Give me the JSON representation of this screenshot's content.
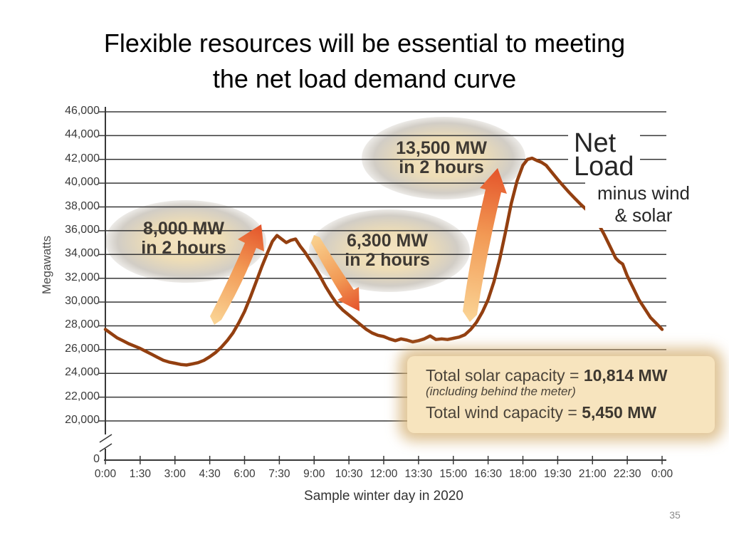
{
  "slide": {
    "title_line1": "Flexible resources will be essential to meeting",
    "title_line2": "the net load demand curve",
    "page_number": "35"
  },
  "chart_data": {
    "type": "line",
    "title": "",
    "xlabel": "Sample winter day in 2020",
    "ylabel": "Megawatts",
    "x_tick_labels": [
      "0:00",
      "1:30",
      "3:00",
      "4:30",
      "6:00",
      "7:30",
      "9:00",
      "10:30",
      "12:00",
      "13:30",
      "15:00",
      "16:30",
      "18:00",
      "19:30",
      "21:00",
      "22:30",
      "0:00"
    ],
    "y_ticks": [
      {
        "label": "46,000",
        "value": 46000
      },
      {
        "label": "44,000",
        "value": 44000
      },
      {
        "label": "42,000",
        "value": 42000
      },
      {
        "label": "40,000",
        "value": 40000
      },
      {
        "label": "38,000",
        "value": 38000
      },
      {
        "label": "36,000",
        "value": 36000
      },
      {
        "label": "34,000",
        "value": 34000
      },
      {
        "label": "32,000",
        "value": 32000
      },
      {
        "label": "30,000",
        "value": 30000
      },
      {
        "label": "28,000",
        "value": 28000
      },
      {
        "label": "26,000",
        "value": 26000
      },
      {
        "label": "24,000",
        "value": 24000
      },
      {
        "label": "22,000",
        "value": 22000
      },
      {
        "label": "20,000",
        "value": 20000
      }
    ],
    "y_zero_tick": {
      "label": "0",
      "value": 0
    },
    "axis_break": true,
    "ylim": [
      20000,
      46000
    ],
    "grid": true,
    "legend_position": "none",
    "series": [
      {
        "name": "Net Load minus wind & solar",
        "color": "#933f10",
        "x_unit": "hour of day",
        "points": [
          [
            0,
            27700
          ],
          [
            0.25,
            27350
          ],
          [
            0.5,
            27000
          ],
          [
            0.75,
            26750
          ],
          [
            1,
            26500
          ],
          [
            1.25,
            26300
          ],
          [
            1.5,
            26100
          ],
          [
            1.75,
            25850
          ],
          [
            2,
            25600
          ],
          [
            2.25,
            25350
          ],
          [
            2.5,
            25100
          ],
          [
            2.75,
            24950
          ],
          [
            3,
            24850
          ],
          [
            3.25,
            24750
          ],
          [
            3.5,
            24700
          ],
          [
            3.75,
            24800
          ],
          [
            4,
            24900
          ],
          [
            4.25,
            25100
          ],
          [
            4.5,
            25400
          ],
          [
            4.75,
            25750
          ],
          [
            5,
            26200
          ],
          [
            5.25,
            26750
          ],
          [
            5.5,
            27400
          ],
          [
            5.75,
            28250
          ],
          [
            6,
            29200
          ],
          [
            6.25,
            30400
          ],
          [
            6.5,
            31700
          ],
          [
            6.75,
            33000
          ],
          [
            7,
            34200
          ],
          [
            7.2,
            35100
          ],
          [
            7.4,
            35600
          ],
          [
            7.6,
            35300
          ],
          [
            7.8,
            35000
          ],
          [
            8,
            35200
          ],
          [
            8.2,
            35300
          ],
          [
            8.4,
            34700
          ],
          [
            8.6,
            34200
          ],
          [
            8.8,
            33600
          ],
          [
            9,
            33000
          ],
          [
            9.25,
            32200
          ],
          [
            9.5,
            31300
          ],
          [
            9.75,
            30500
          ],
          [
            10,
            29800
          ],
          [
            10.25,
            29300
          ],
          [
            10.5,
            28900
          ],
          [
            10.75,
            28500
          ],
          [
            11,
            28100
          ],
          [
            11.25,
            27700
          ],
          [
            11.5,
            27400
          ],
          [
            11.75,
            27200
          ],
          [
            12,
            27100
          ],
          [
            12.25,
            26900
          ],
          [
            12.5,
            26750
          ],
          [
            12.75,
            26900
          ],
          [
            13,
            26800
          ],
          [
            13.25,
            26650
          ],
          [
            13.5,
            26750
          ],
          [
            13.75,
            26900
          ],
          [
            14,
            27150
          ],
          [
            14.25,
            26850
          ],
          [
            14.5,
            26900
          ],
          [
            14.75,
            26850
          ],
          [
            15,
            26950
          ],
          [
            15.25,
            27050
          ],
          [
            15.5,
            27250
          ],
          [
            15.75,
            27700
          ],
          [
            16,
            28300
          ],
          [
            16.25,
            29150
          ],
          [
            16.5,
            30200
          ],
          [
            16.75,
            31700
          ],
          [
            17,
            33600
          ],
          [
            17.25,
            35900
          ],
          [
            17.5,
            38300
          ],
          [
            17.75,
            40200
          ],
          [
            18,
            41500
          ],
          [
            18.2,
            42000
          ],
          [
            18.4,
            42100
          ],
          [
            18.6,
            41900
          ],
          [
            18.8,
            41750
          ],
          [
            19,
            41500
          ],
          [
            19.25,
            40900
          ],
          [
            19.5,
            40300
          ],
          [
            19.75,
            39750
          ],
          [
            20,
            39200
          ],
          [
            20.25,
            38700
          ],
          [
            20.5,
            38200
          ],
          [
            20.75,
            37750
          ],
          [
            21,
            37300
          ],
          [
            21.25,
            36600
          ],
          [
            21.5,
            35700
          ],
          [
            21.75,
            34700
          ],
          [
            22,
            33700
          ],
          [
            22.15,
            33400
          ],
          [
            22.3,
            33200
          ],
          [
            22.5,
            32200
          ],
          [
            22.75,
            31200
          ],
          [
            23,
            30200
          ],
          [
            23.25,
            29450
          ],
          [
            23.5,
            28700
          ],
          [
            23.75,
            28200
          ],
          [
            24,
            27700
          ]
        ]
      }
    ],
    "annotations": [
      {
        "text": "8,000 MW in 2 hours",
        "type": "morning ramp up"
      },
      {
        "text": "6,300 MW in 2 hours",
        "type": "midday ramp down"
      },
      {
        "text": "13,500 MW in 2 hours",
        "type": "evening ramp up"
      },
      {
        "text": "Net Load minus wind & solar",
        "type": "series label"
      },
      {
        "text": "Total solar capacity = 10,814 MW (including behind the meter)",
        "type": "info"
      },
      {
        "text": "Total wind capacity = 5,450 MW",
        "type": "info"
      }
    ]
  },
  "labels": {
    "ramp1": {
      "line1": "8,000 MW",
      "line2": "in 2 hours"
    },
    "ramp2": {
      "line1": "6,300 MW",
      "line2": "in 2 hours"
    },
    "ramp3": {
      "line1": "13,500 MW",
      "line2": "in 2 hours"
    },
    "net_load": {
      "line1": "Net",
      "line2": "Load",
      "line3": "minus wind",
      "line4": "& solar"
    },
    "infobox": {
      "solar_label": "Total solar capacity = ",
      "solar_value": "10,814 MW",
      "note": "(including behind the meter)",
      "wind_label": "Total wind capacity = ",
      "wind_value": "5,450 MW"
    },
    "caption": "Sample winter day in 2020"
  },
  "colors": {
    "curve": "#933f10",
    "arrow_light": "#fad394",
    "arrow_mid": "#f29a55",
    "arrow_dark": "#e4542a",
    "glow": "#f2e0bc",
    "infobox_bg": "#f7e4be",
    "grid_line": "#383838",
    "annotation_text": "#3e3933"
  }
}
